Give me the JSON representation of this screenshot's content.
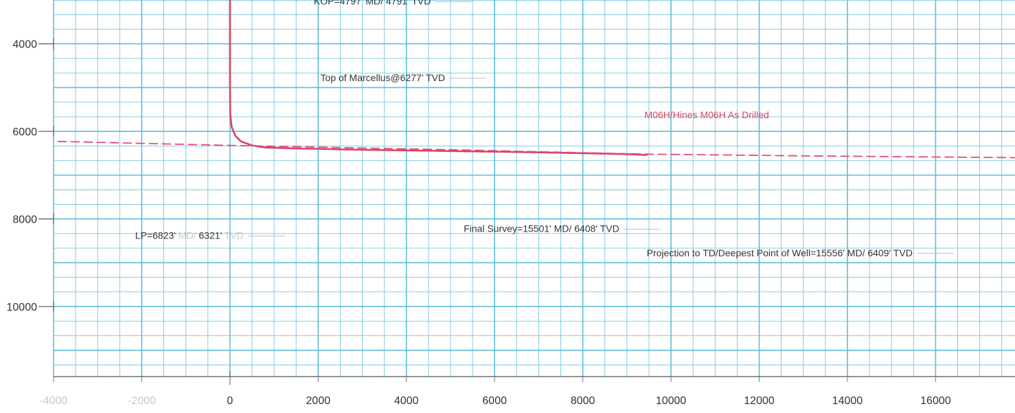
{
  "chart_data": {
    "type": "line",
    "title": "",
    "xlabel": "",
    "ylabel": "",
    "xlim": [
      -4000,
      17800
    ],
    "ylim": [
      11600,
      3000
    ],
    "y_inverted": true,
    "grid": true,
    "x_ticks": [
      -4000,
      -2000,
      0,
      2000,
      4000,
      6000,
      8000,
      10000,
      12000,
      14000,
      16000
    ],
    "x_tick_labels": [
      "-4000",
      "-2000",
      "0",
      "2000",
      "4000",
      "6000",
      "8000",
      "10000",
      "12000",
      "14000",
      "16000"
    ],
    "y_ticks": [
      4000,
      6000,
      8000,
      10000
    ],
    "y_tick_labels": [
      "4000",
      "6000",
      "8000",
      "10000"
    ],
    "colors": {
      "well": "#d9435f",
      "target": "#e8477f",
      "grid": "#56b9d9"
    },
    "series": [
      {
        "name": "M06H/Hines M06H As Drilled",
        "style": "solid",
        "x": [
          0,
          0,
          0,
          0,
          0,
          5,
          40,
          120,
          250,
          500,
          800,
          1500,
          3000,
          5000,
          7000,
          9000,
          9450
        ],
        "y": [
          2900,
          3500,
          4000,
          4791,
          5000,
          5600,
          5900,
          6100,
          6230,
          6320,
          6370,
          6390,
          6420,
          6450,
          6480,
          6520,
          6540
        ]
      },
      {
        "name": "",
        "style": "dashed",
        "x": [
          -3900,
          0,
          5000,
          9450,
          13000,
          17800
        ],
        "y": [
          6230,
          6320,
          6420,
          6520,
          6560,
          6600
        ]
      }
    ],
    "annotations": [
      {
        "text": "KOP=4797' MD/ 4791' TVD",
        "x": 1900,
        "y": 3100
      },
      {
        "text": "Top of Marcellus@6277' TVD",
        "x": 2050,
        "y": 4850
      },
      {
        "text": "M06H/Hines M06H As Drilled",
        "x": 9400,
        "y": 5700
      },
      {
        "text_parts": [
          "LP=6823'",
          " MD/",
          " 6321'",
          " TVD"
        ],
        "x": -2150,
        "y": 8450
      },
      {
        "text": "Final Survey=15501' MD/ 6408' TVD",
        "x": 5300,
        "y": 8300
      },
      {
        "text": "Projection to TD/Deepest Point of Well=15556' MD/ 6409' TVD",
        "x": 9450,
        "y": 8850
      }
    ]
  }
}
